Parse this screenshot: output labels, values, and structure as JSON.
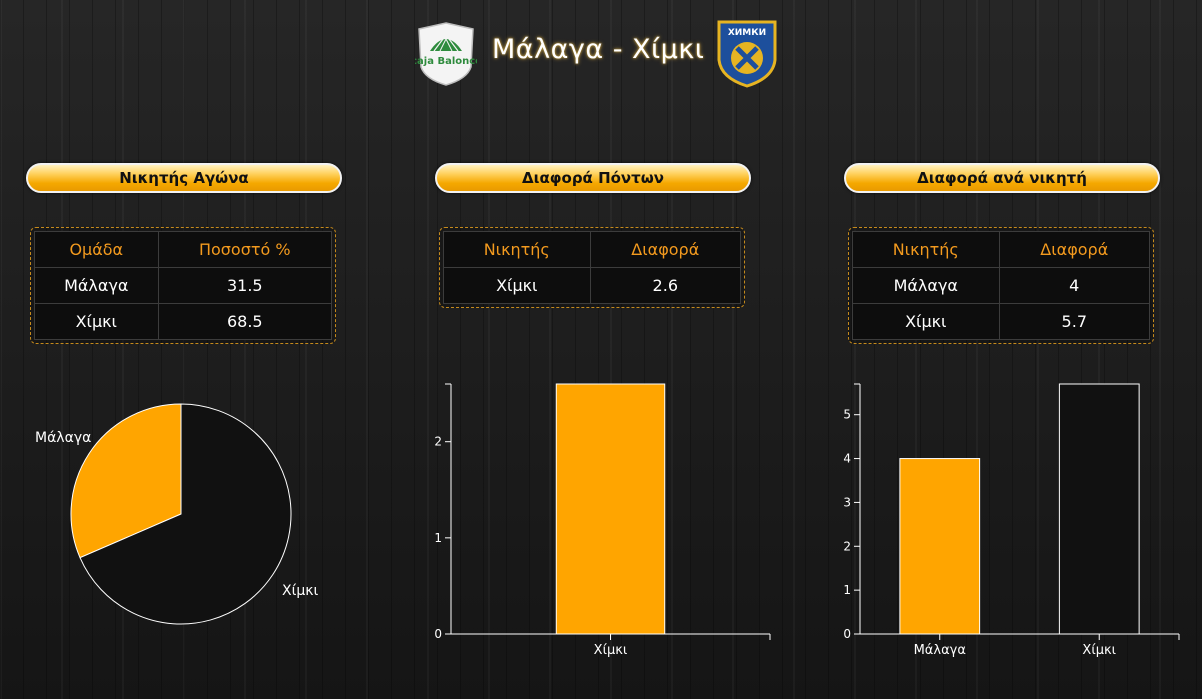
{
  "header": {
    "title": "Μάλαγα - Χίμκι",
    "logo_left": "Unicaja Baloncesto",
    "logo_right": "ХИМКИ"
  },
  "panels": [
    {
      "title": "Νικητής Αγώνα",
      "columns": [
        "Ομάδα",
        "Ποσοστό %"
      ],
      "rows": [
        [
          "Μάλαγα",
          "31.5"
        ],
        [
          "Χίμκι",
          "68.5"
        ]
      ]
    },
    {
      "title": "Διαφορά Πόντων",
      "columns": [
        "Νικητής",
        "Διαφορά"
      ],
      "rows": [
        [
          "Χίμκι",
          "2.6"
        ]
      ]
    },
    {
      "title": "Διαφορά ανά νικητή",
      "columns": [
        "Νικητής",
        "Διαφορά"
      ],
      "rows": [
        [
          "Μάλαγα",
          "4"
        ],
        [
          "Χίμκι",
          "5.7"
        ]
      ]
    }
  ],
  "colors": {
    "accent": "#ffa500",
    "dark": "#111111",
    "header_text": "#f39a1e"
  },
  "chart_data": [
    {
      "type": "pie",
      "labels": [
        "Μάλαγα",
        "Χίμκι"
      ],
      "values": [
        31.5,
        68.5
      ],
      "colors": [
        "#ffa500",
        "#111111"
      ]
    },
    {
      "type": "bar",
      "categories": [
        "Χίμκι"
      ],
      "values": [
        2.6
      ],
      "colors": [
        "#ffa500"
      ],
      "ylim": [
        0,
        2.6
      ],
      "yticks": [
        0,
        1,
        2
      ]
    },
    {
      "type": "bar",
      "categories": [
        "Μάλαγα",
        "Χίμκι"
      ],
      "values": [
        4,
        5.7
      ],
      "colors": [
        "#ffa500",
        "#111111"
      ],
      "ylim": [
        0,
        5.7
      ],
      "yticks": [
        0,
        1,
        2,
        3,
        4,
        5
      ]
    }
  ]
}
